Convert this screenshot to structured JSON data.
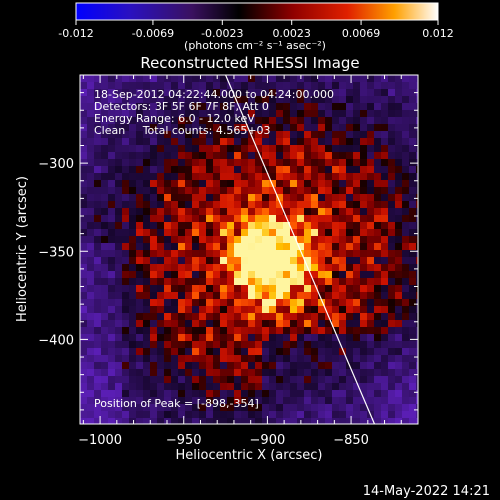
{
  "colorbar": {
    "ticks": [
      "-0.012",
      "-0.0069",
      "-0.0023",
      "0.0023",
      "0.0069",
      "0.012"
    ],
    "tick_values": [
      -0.012,
      -0.0069,
      -0.0023,
      0.0023,
      0.0069,
      0.012
    ],
    "range": [
      -0.012,
      0.012
    ],
    "units_label": "(photons cm⁻² s⁻¹ asec⁻²)",
    "colors": [
      "#0000ff",
      "#3a1aa8",
      "#5a2a9a",
      "#000000",
      "#b01010",
      "#ff5a00",
      "#ffd200",
      "#ffffff"
    ]
  },
  "chart_data": {
    "type": "heatmap",
    "title": "Reconstructed RHESSI Image",
    "xlabel": "Heliocentric X (arcsec)",
    "ylabel": "Heliocentric Y (arcsec)",
    "xlim": [
      -1012,
      -810
    ],
    "ylim": [
      -448,
      -250
    ],
    "x_ticks": [
      -1000,
      -950,
      -900,
      -850
    ],
    "x_tick_labels": [
      "−1000",
      "−950",
      "−900",
      "−850"
    ],
    "y_ticks": [
      -300,
      -350,
      -400
    ],
    "y_tick_labels": [
      "−300",
      "−350",
      "−400"
    ],
    "peak": {
      "x": -898,
      "y": -354
    },
    "limb_line": [
      [
        -925,
        -250
      ],
      [
        -836,
        -448
      ]
    ],
    "annotations": [
      "18-Sep-2012 04:22:44.000 to 04:24:00.000",
      "Detectors: 3F 5F 6F 7F 8F, Att 0",
      "Energy Range: 6.0 - 12.0 keV",
      "Clean     Total counts: 4.565+03",
      "Position of Peak = [-898,-354]"
    ]
  },
  "footer_timestamp": "14-May-2022 14:21"
}
